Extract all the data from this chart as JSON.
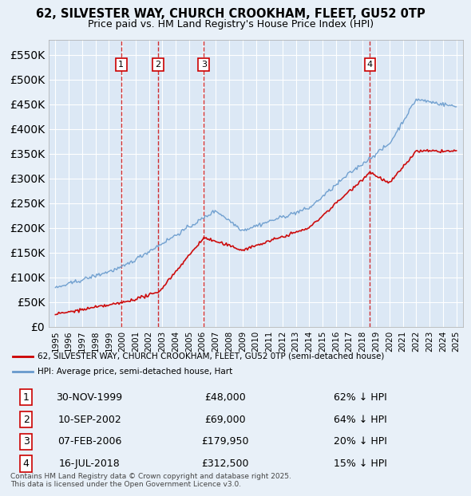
{
  "title1": "62, SILVESTER WAY, CHURCH CROOKHAM, FLEET, GU52 0TP",
  "title2": "Price paid vs. HM Land Registry's House Price Index (HPI)",
  "ylabel": "",
  "background_color": "#e8f0f8",
  "plot_bg_color": "#dce8f5",
  "ylim": [
    0,
    580000
  ],
  "yticks": [
    0,
    50000,
    100000,
    150000,
    200000,
    250000,
    300000,
    350000,
    400000,
    450000,
    500000,
    550000
  ],
  "xlim_start": 1994.5,
  "xlim_end": 2025.5,
  "legend_label_red": "62, SILVESTER WAY, CHURCH CROOKHAM, FLEET, GU52 0TP (semi-detached house)",
  "legend_label_blue": "HPI: Average price, semi-detached house, Hart",
  "sales": [
    {
      "num": 1,
      "date": "30-NOV-1999",
      "price": 48000,
      "pct": "62%",
      "x": 1999.92
    },
    {
      "num": 2,
      "date": "10-SEP-2002",
      "price": 69000,
      "pct": "64%",
      "x": 2002.69
    },
    {
      "num": 3,
      "date": "07-FEB-2006",
      "price": 179950,
      "pct": "20%",
      "x": 2006.1
    },
    {
      "num": 4,
      "date": "16-JUL-2018",
      "price": 312500,
      "pct": "15%",
      "x": 2018.54
    }
  ],
  "footer": "Contains HM Land Registry data © Crown copyright and database right 2025.\nThis data is licensed under the Open Government Licence v3.0.",
  "red_color": "#cc0000",
  "blue_color": "#6699cc",
  "dashed_color": "#cc0000"
}
